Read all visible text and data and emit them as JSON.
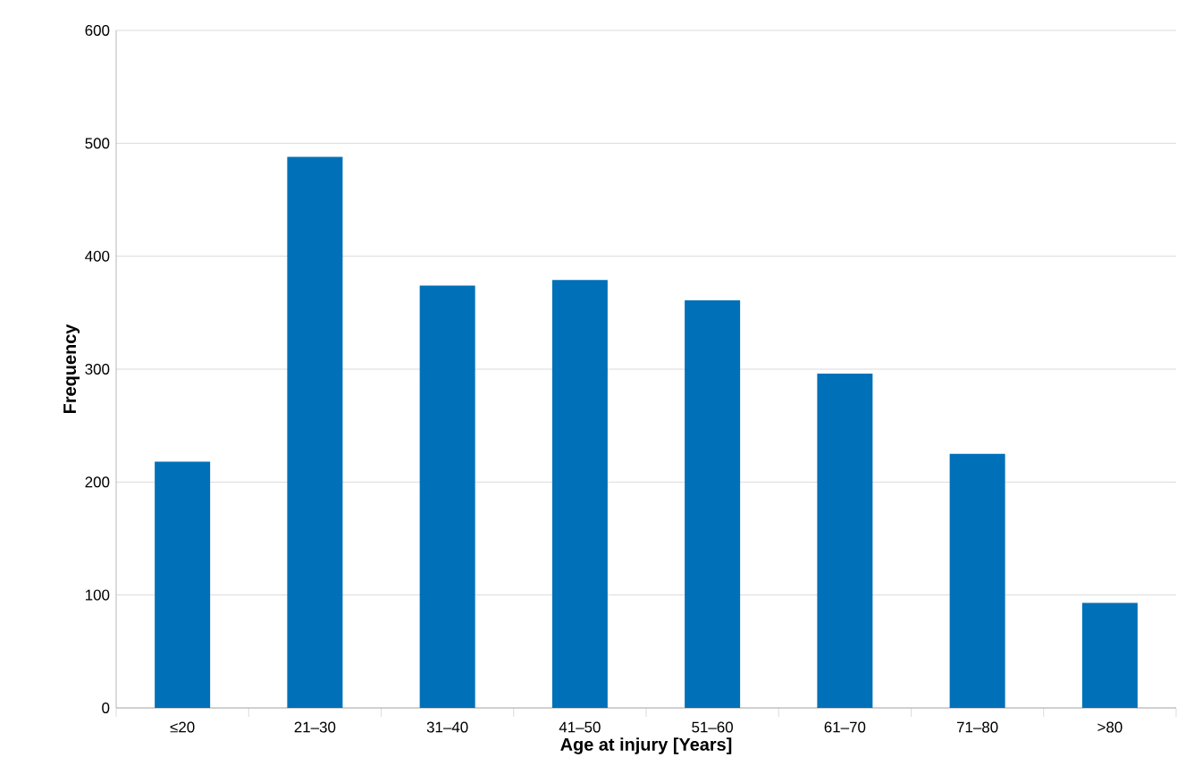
{
  "chart_data": {
    "type": "bar",
    "xlabel": "Age at injury [Years]",
    "ylabel": "Frequency",
    "categories": [
      "≤20",
      "21–30",
      "31–40",
      "41–50",
      "51–60",
      "61–70",
      "71–80",
      ">80"
    ],
    "values": [
      218,
      488,
      374,
      379,
      361,
      296,
      225,
      93
    ],
    "color": "#0070b8",
    "ylim": [
      0,
      600
    ],
    "yticks": [
      0,
      100,
      200,
      300,
      400,
      500,
      600
    ],
    "grid": "y",
    "legend": false
  }
}
